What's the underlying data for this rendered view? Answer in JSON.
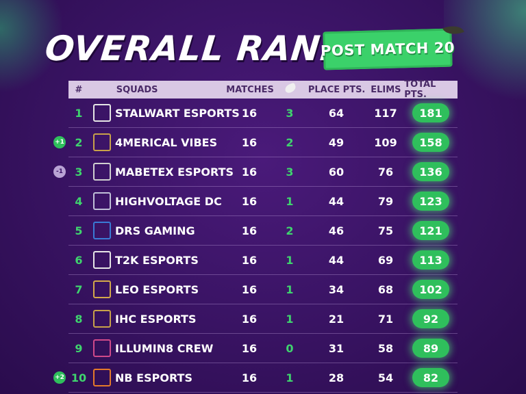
{
  "title": "OVERALL RANKING",
  "badge": "POST MATCH 20",
  "headers": {
    "rank": "#",
    "squads": "SQUADS",
    "matches": "MATCHES",
    "wwcd_icon": "chicken-dinner-icon",
    "place_pts": "PLACE PTS.",
    "elims": "ELIMS",
    "total_pts": "TOTAL PTS."
  },
  "colors": {
    "background": "#3b1466",
    "accent_green": "#3bd16a",
    "header_bg": "#d9c8e4"
  },
  "rows": [
    {
      "rank": "1",
      "change": "",
      "logo": "stalwart-logo",
      "squad": "STALWART ESPORTS",
      "matches": "16",
      "wwcd": "3",
      "place": "64",
      "elims": "117",
      "total": "181"
    },
    {
      "rank": "2",
      "change": "+1",
      "logo": "4merical-logo",
      "squad": "4MERICAL VIBES",
      "matches": "16",
      "wwcd": "2",
      "place": "49",
      "elims": "109",
      "total": "158"
    },
    {
      "rank": "3",
      "change": "-1",
      "logo": "mabetex-logo",
      "squad": "MABETEX ESPORTS",
      "matches": "16",
      "wwcd": "3",
      "place": "60",
      "elims": "76",
      "total": "136"
    },
    {
      "rank": "4",
      "change": "",
      "logo": "highvoltage-logo",
      "squad": "HIGHVOLTAGE DC",
      "matches": "16",
      "wwcd": "1",
      "place": "44",
      "elims": "79",
      "total": "123"
    },
    {
      "rank": "5",
      "change": "",
      "logo": "drs-logo",
      "squad": "DRS GAMING",
      "matches": "16",
      "wwcd": "2",
      "place": "46",
      "elims": "75",
      "total": "121"
    },
    {
      "rank": "6",
      "change": "",
      "logo": "t2k-logo",
      "squad": "T2K ESPORTS",
      "matches": "16",
      "wwcd": "1",
      "place": "44",
      "elims": "69",
      "total": "113"
    },
    {
      "rank": "7",
      "change": "",
      "logo": "leo-logo",
      "squad": "LEO ESPORTS",
      "matches": "16",
      "wwcd": "1",
      "place": "34",
      "elims": "68",
      "total": "102"
    },
    {
      "rank": "8",
      "change": "",
      "logo": "ihc-logo",
      "squad": "IHC ESPORTS",
      "matches": "16",
      "wwcd": "1",
      "place": "21",
      "elims": "71",
      "total": "92"
    },
    {
      "rank": "9",
      "change": "",
      "logo": "illumin8-logo",
      "squad": "ILLUMIN8 CREW",
      "matches": "16",
      "wwcd": "0",
      "place": "31",
      "elims": "58",
      "total": "89"
    },
    {
      "rank": "10",
      "change": "+2",
      "logo": "nb-logo",
      "squad": "NB ESPORTS",
      "matches": "16",
      "wwcd": "1",
      "place": "28",
      "elims": "54",
      "total": "82"
    }
  ]
}
